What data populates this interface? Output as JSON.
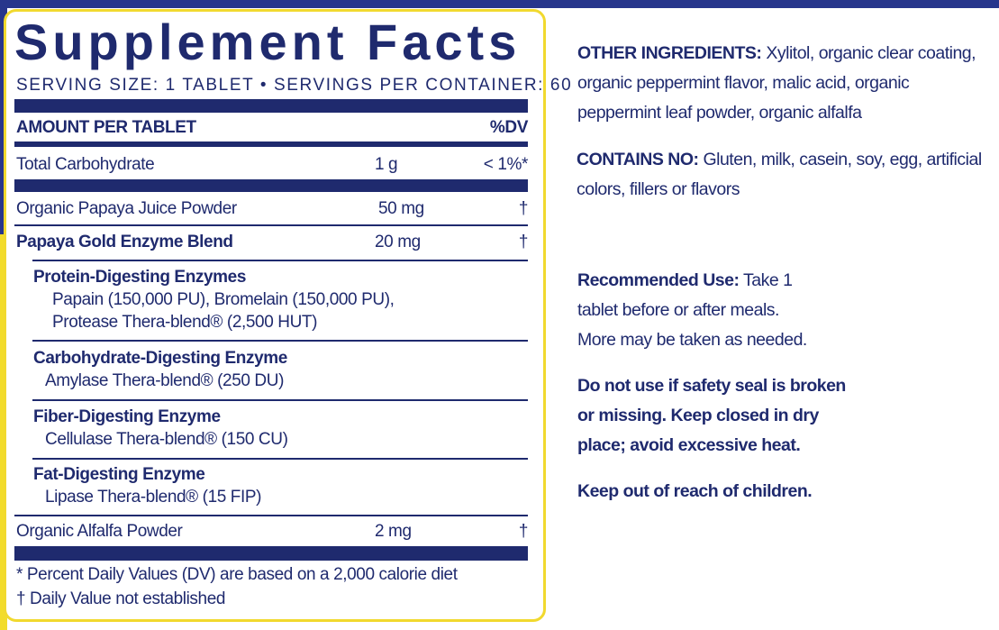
{
  "label": {
    "title": "Supplement Facts",
    "serving": "SERVING SIZE: 1 TABLET • SERVINGS PER CONTAINER: 60",
    "header_amount": "AMOUNT PER TABLET",
    "header_dv": "%DV",
    "rows": [
      {
        "name": "Total Carbohydrate",
        "amount": "1 g",
        "dv": "< 1%*"
      },
      {
        "name": "Organic Papaya Juice Powder",
        "amount": "50 mg",
        "dv": "†"
      },
      {
        "name": "Papaya Gold Enzyme Blend",
        "amount": "20 mg",
        "dv": "†"
      },
      {
        "name": "Organic Alfalfa Powder",
        "amount": "2 mg",
        "dv": "†"
      }
    ],
    "groups": [
      {
        "title": "Protein-Digesting Enzymes",
        "lines": [
          "Papain (150,000 PU), Bromelain (150,000 PU),",
          "Protease Thera-blend® (2,500 HUT)"
        ]
      },
      {
        "title": "Carbohydrate-Digesting Enzyme",
        "lines": [
          "Amylase Thera-blend® (250 DU)"
        ]
      },
      {
        "title": "Fiber-Digesting Enzyme",
        "lines": [
          "Cellulase Thera-blend® (150 CU)"
        ]
      },
      {
        "title": "Fat-Digesting Enzyme",
        "lines": [
          "Lipase Thera-blend® (15 FIP)"
        ]
      }
    ],
    "footnotes": [
      "* Percent Daily Values (DV) are based on a 2,000 calorie diet",
      "† Daily Value not established"
    ]
  },
  "info": {
    "other_label": "OTHER INGREDIENTS:",
    "other_lines": [
      " Xylitol, organic clear coating,",
      "organic peppermint flavor, malic acid, organic",
      "peppermint leaf powder, organic alfalfa"
    ],
    "contains_label": "CONTAINS NO:",
    "contains_lines": [
      " Gluten, milk, casein, soy, egg, artificial",
      "colors, fillers or flavors"
    ],
    "use_label": "Recommended Use:",
    "use_lines": [
      " Take 1",
      "tablet before or after meals.",
      "More may be taken as needed."
    ],
    "warning_lines": [
      "Do not use if safety seal is broken",
      "or missing. Keep closed in dry",
      "place; avoid excessive heat."
    ],
    "children": "Keep out of reach of children."
  },
  "colors": {
    "navy": "#1f2a6e",
    "border_yellow": "#f1d92e",
    "band_blue": "#27368c"
  }
}
